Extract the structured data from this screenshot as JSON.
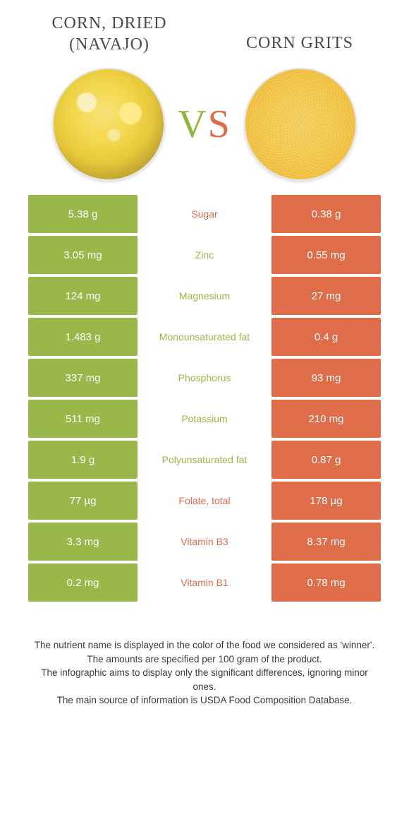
{
  "colors": {
    "green": "#99b849",
    "orange": "#df6d4a",
    "text": "#3a3a3a"
  },
  "left_title_line1": "CORN, DRIED",
  "left_title_line2": "(NAVAJO)",
  "right_title": "CORN GRITS",
  "vs": {
    "v": "V",
    "s": "S"
  },
  "rows": [
    {
      "left": "5.38 g",
      "mid": "Sugar",
      "winner": "orange",
      "right": "0.38 g"
    },
    {
      "left": "3.05 mg",
      "mid": "Zinc",
      "winner": "green",
      "right": "0.55 mg"
    },
    {
      "left": "124 mg",
      "mid": "Magnesium",
      "winner": "green",
      "right": "27 mg"
    },
    {
      "left": "1.483 g",
      "mid": "Monounsaturated fat",
      "winner": "green",
      "right": "0.4 g"
    },
    {
      "left": "337 mg",
      "mid": "Phosphorus",
      "winner": "green",
      "right": "93 mg"
    },
    {
      "left": "511 mg",
      "mid": "Potassium",
      "winner": "green",
      "right": "210 mg"
    },
    {
      "left": "1.9 g",
      "mid": "Polyunsaturated fat",
      "winner": "green",
      "right": "0.87 g"
    },
    {
      "left": "77 µg",
      "mid": "Folate, total",
      "winner": "orange",
      "right": "178 µg"
    },
    {
      "left": "3.3 mg",
      "mid": "Vitamin B3",
      "winner": "orange",
      "right": "8.37 mg"
    },
    {
      "left": "0.2 mg",
      "mid": "Vitamin B1",
      "winner": "orange",
      "right": "0.78 mg"
    }
  ],
  "footer": [
    "The nutrient name is displayed in the color of the food we considered as 'winner'.",
    "The amounts are specified per 100 gram of the product.",
    "The infographic aims to display only the significant differences, ignoring minor ones.",
    "The main source of information is USDA Food Composition Database."
  ]
}
